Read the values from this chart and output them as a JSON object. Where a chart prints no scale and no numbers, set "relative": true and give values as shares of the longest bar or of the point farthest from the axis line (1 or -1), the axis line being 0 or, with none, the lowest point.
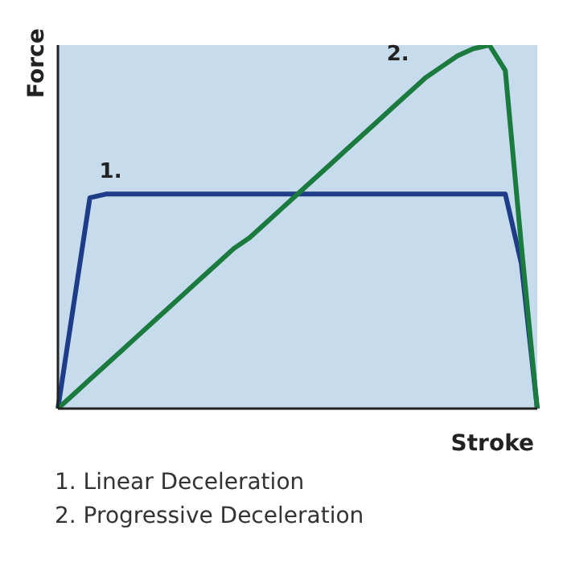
{
  "chart_data": {
    "type": "line",
    "relative": true,
    "xlabel": "Stroke",
    "ylabel": "Force",
    "legend": false,
    "grid": false,
    "marker": "none",
    "categories": [
      null,
      null,
      null,
      null,
      null,
      null,
      null,
      null,
      null,
      null,
      null,
      null,
      null,
      null,
      null,
      null,
      null,
      null,
      null,
      null,
      null,
      null,
      null,
      null,
      null,
      null,
      null,
      null,
      null,
      null,
      null
    ],
    "series": [
      {
        "name": "1.",
        "color": "#1f3c88",
        "values": [
          0,
          0.29,
          0.58,
          0.59,
          0.59,
          0.59,
          0.59,
          0.59,
          0.59,
          0.59,
          0.59,
          0.59,
          0.59,
          0.59,
          0.59,
          0.59,
          0.59,
          0.59,
          0.59,
          0.59,
          0.59,
          0.59,
          0.59,
          0.59,
          0.59,
          0.59,
          0.59,
          0.59,
          0.59,
          0.4,
          0
        ]
      },
      {
        "name": "2.",
        "color": "#1b7a3e",
        "values": [
          0,
          0.04,
          0.08,
          0.12,
          0.16,
          0.2,
          0.24,
          0.28,
          0.32,
          0.36,
          0.4,
          0.44,
          0.47,
          0.51,
          0.55,
          0.59,
          0.63,
          0.67,
          0.71,
          0.75,
          0.79,
          0.83,
          0.87,
          0.91,
          0.94,
          0.97,
          0.99,
          1,
          0.93,
          0.45,
          0
        ]
      }
    ],
    "annotations": [
      "1. Linear Deceleration",
      "2. Progressive Deceleration"
    ]
  }
}
